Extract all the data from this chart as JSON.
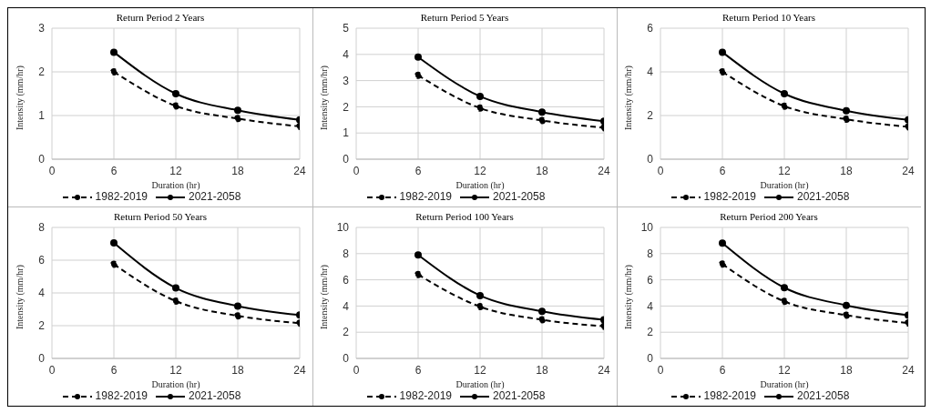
{
  "chart_data": [
    {
      "type": "line",
      "title": "Return Period 2 Years",
      "xlabel": "Duration (hr)",
      "ylabel": "Intensity (mm/hr)",
      "x": [
        6,
        12,
        18,
        24
      ],
      "xlim": [
        0,
        24
      ],
      "xticks": [
        0,
        6,
        12,
        18,
        24
      ],
      "ylim": [
        0,
        3
      ],
      "yticks": [
        0,
        1,
        2,
        3
      ],
      "grid": true,
      "legend": "bottom",
      "marker": "circle",
      "series": [
        {
          "name": "1982-2019",
          "color": "#000000",
          "line_style": "dashed",
          "values": [
            2.0,
            1.22,
            0.93,
            0.75
          ]
        },
        {
          "name": "2021-2058",
          "color": "#000000",
          "line_style": "solid",
          "values": [
            2.45,
            1.5,
            1.12,
            0.9
          ]
        }
      ]
    },
    {
      "type": "line",
      "title": "Return Period 5 Years",
      "xlabel": "Duration (hr)",
      "ylabel": "Intensity (mm/hr)",
      "x": [
        6,
        12,
        18,
        24
      ],
      "xlim": [
        0,
        24
      ],
      "xticks": [
        0,
        6,
        12,
        18,
        24
      ],
      "ylim": [
        0,
        5
      ],
      "yticks": [
        0,
        1,
        2,
        3,
        4,
        5
      ],
      "grid": true,
      "legend": "bottom",
      "marker": "circle",
      "series": [
        {
          "name": "1982-2019",
          "color": "#000000",
          "line_style": "dashed",
          "values": [
            3.2,
            1.95,
            1.48,
            1.2
          ]
        },
        {
          "name": "2021-2058",
          "color": "#000000",
          "line_style": "solid",
          "values": [
            3.9,
            2.4,
            1.8,
            1.45
          ]
        }
      ]
    },
    {
      "type": "line",
      "title": "Return Period 10 Years",
      "xlabel": "Duration (hr)",
      "ylabel": "Intensity (mm/hr)",
      "x": [
        6,
        12,
        18,
        24
      ],
      "xlim": [
        0,
        24
      ],
      "xticks": [
        0,
        6,
        12,
        18,
        24
      ],
      "ylim": [
        0,
        6
      ],
      "yticks": [
        0,
        2,
        4,
        6
      ],
      "grid": true,
      "legend": "bottom",
      "marker": "circle",
      "series": [
        {
          "name": "1982-2019",
          "color": "#000000",
          "line_style": "dashed",
          "values": [
            4.0,
            2.43,
            1.83,
            1.48
          ]
        },
        {
          "name": "2021-2058",
          "color": "#000000",
          "line_style": "solid",
          "values": [
            4.9,
            3.0,
            2.22,
            1.8
          ]
        }
      ]
    },
    {
      "type": "line",
      "title": "Return Period 50 Years",
      "xlabel": "Duration (hr)",
      "ylabel": "Intensity (mm/hr)",
      "x": [
        6,
        12,
        18,
        24
      ],
      "xlim": [
        0,
        24
      ],
      "xticks": [
        0,
        6,
        12,
        18,
        24
      ],
      "ylim": [
        0,
        8
      ],
      "yticks": [
        0,
        2,
        4,
        6,
        8
      ],
      "grid": true,
      "legend": "bottom",
      "marker": "circle",
      "series": [
        {
          "name": "1982-2019",
          "color": "#000000",
          "line_style": "dashed",
          "values": [
            5.75,
            3.5,
            2.6,
            2.15
          ]
        },
        {
          "name": "2021-2058",
          "color": "#000000",
          "line_style": "solid",
          "values": [
            7.05,
            4.3,
            3.2,
            2.65
          ]
        }
      ]
    },
    {
      "type": "line",
      "title": "Return Period 100 Years",
      "xlabel": "Duration (hr)",
      "ylabel": "Intensity (mm/hr)",
      "x": [
        6,
        12,
        18,
        24
      ],
      "xlim": [
        0,
        24
      ],
      "xticks": [
        0,
        6,
        12,
        18,
        24
      ],
      "ylim": [
        0,
        10
      ],
      "yticks": [
        0,
        2,
        4,
        6,
        8,
        10
      ],
      "grid": true,
      "legend": "bottom",
      "marker": "circle",
      "series": [
        {
          "name": "1982-2019",
          "color": "#000000",
          "line_style": "dashed",
          "values": [
            6.4,
            3.95,
            2.95,
            2.45
          ]
        },
        {
          "name": "2021-2058",
          "color": "#000000",
          "line_style": "solid",
          "values": [
            7.9,
            4.8,
            3.6,
            2.95
          ]
        }
      ]
    },
    {
      "type": "line",
      "title": "Return Period 200 Years",
      "xlabel": "Duration (hr)",
      "ylabel": "Intensity (mm/hr)",
      "x": [
        6,
        12,
        18,
        24
      ],
      "xlim": [
        0,
        24
      ],
      "xticks": [
        0,
        6,
        12,
        18,
        24
      ],
      "ylim": [
        0,
        10
      ],
      "yticks": [
        0,
        2,
        4,
        6,
        8,
        10
      ],
      "grid": true,
      "legend": "bottom",
      "marker": "circle",
      "series": [
        {
          "name": "1982-2019",
          "color": "#000000",
          "line_style": "dashed",
          "values": [
            7.2,
            4.35,
            3.3,
            2.7
          ]
        },
        {
          "name": "2021-2058",
          "color": "#000000",
          "line_style": "solid",
          "values": [
            8.8,
            5.4,
            4.05,
            3.3
          ]
        }
      ]
    }
  ]
}
